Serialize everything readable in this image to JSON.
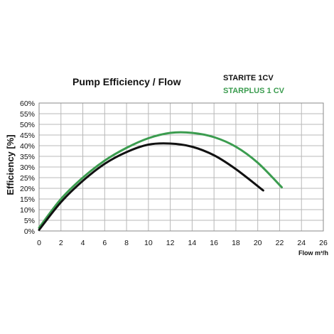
{
  "chart_data": {
    "type": "line",
    "title": "Pump  Efficiency  /  Flow",
    "xlabel": "Flow m³/h",
    "ylabel": "Efficiency [%]",
    "xlim": [
      0,
      26
    ],
    "ylim": [
      0,
      60
    ],
    "grid": true,
    "legend_position": "top-right",
    "xticks": [
      "0",
      "2",
      "4",
      "6",
      "8",
      "10",
      "12",
      "14",
      "16",
      "18",
      "20",
      "22",
      "24",
      "26"
    ],
    "yticks": [
      "0%",
      "5%",
      "10%",
      "15%",
      "20%",
      "25%",
      "30%",
      "35%",
      "40%",
      "45%",
      "50%",
      "55%",
      "60%"
    ],
    "series": [
      {
        "name": "STARITE 1CV",
        "color": "#111111",
        "x": [
          0,
          2,
          4,
          6,
          8,
          10,
          12,
          14,
          16,
          18,
          20.5
        ],
        "y": [
          0.5,
          13.5,
          23.5,
          31.5,
          37,
          40.5,
          41,
          39.5,
          35.5,
          29,
          19
        ]
      },
      {
        "name": "STARPLUS 1 CV",
        "color": "#3b9c4f",
        "x": [
          0,
          2,
          4,
          6,
          8,
          10,
          12,
          14,
          16,
          18,
          20,
          22.2
        ],
        "y": [
          1.5,
          15,
          25,
          33,
          39,
          43.5,
          46,
          46,
          44,
          39.5,
          32,
          20.5
        ]
      }
    ]
  }
}
